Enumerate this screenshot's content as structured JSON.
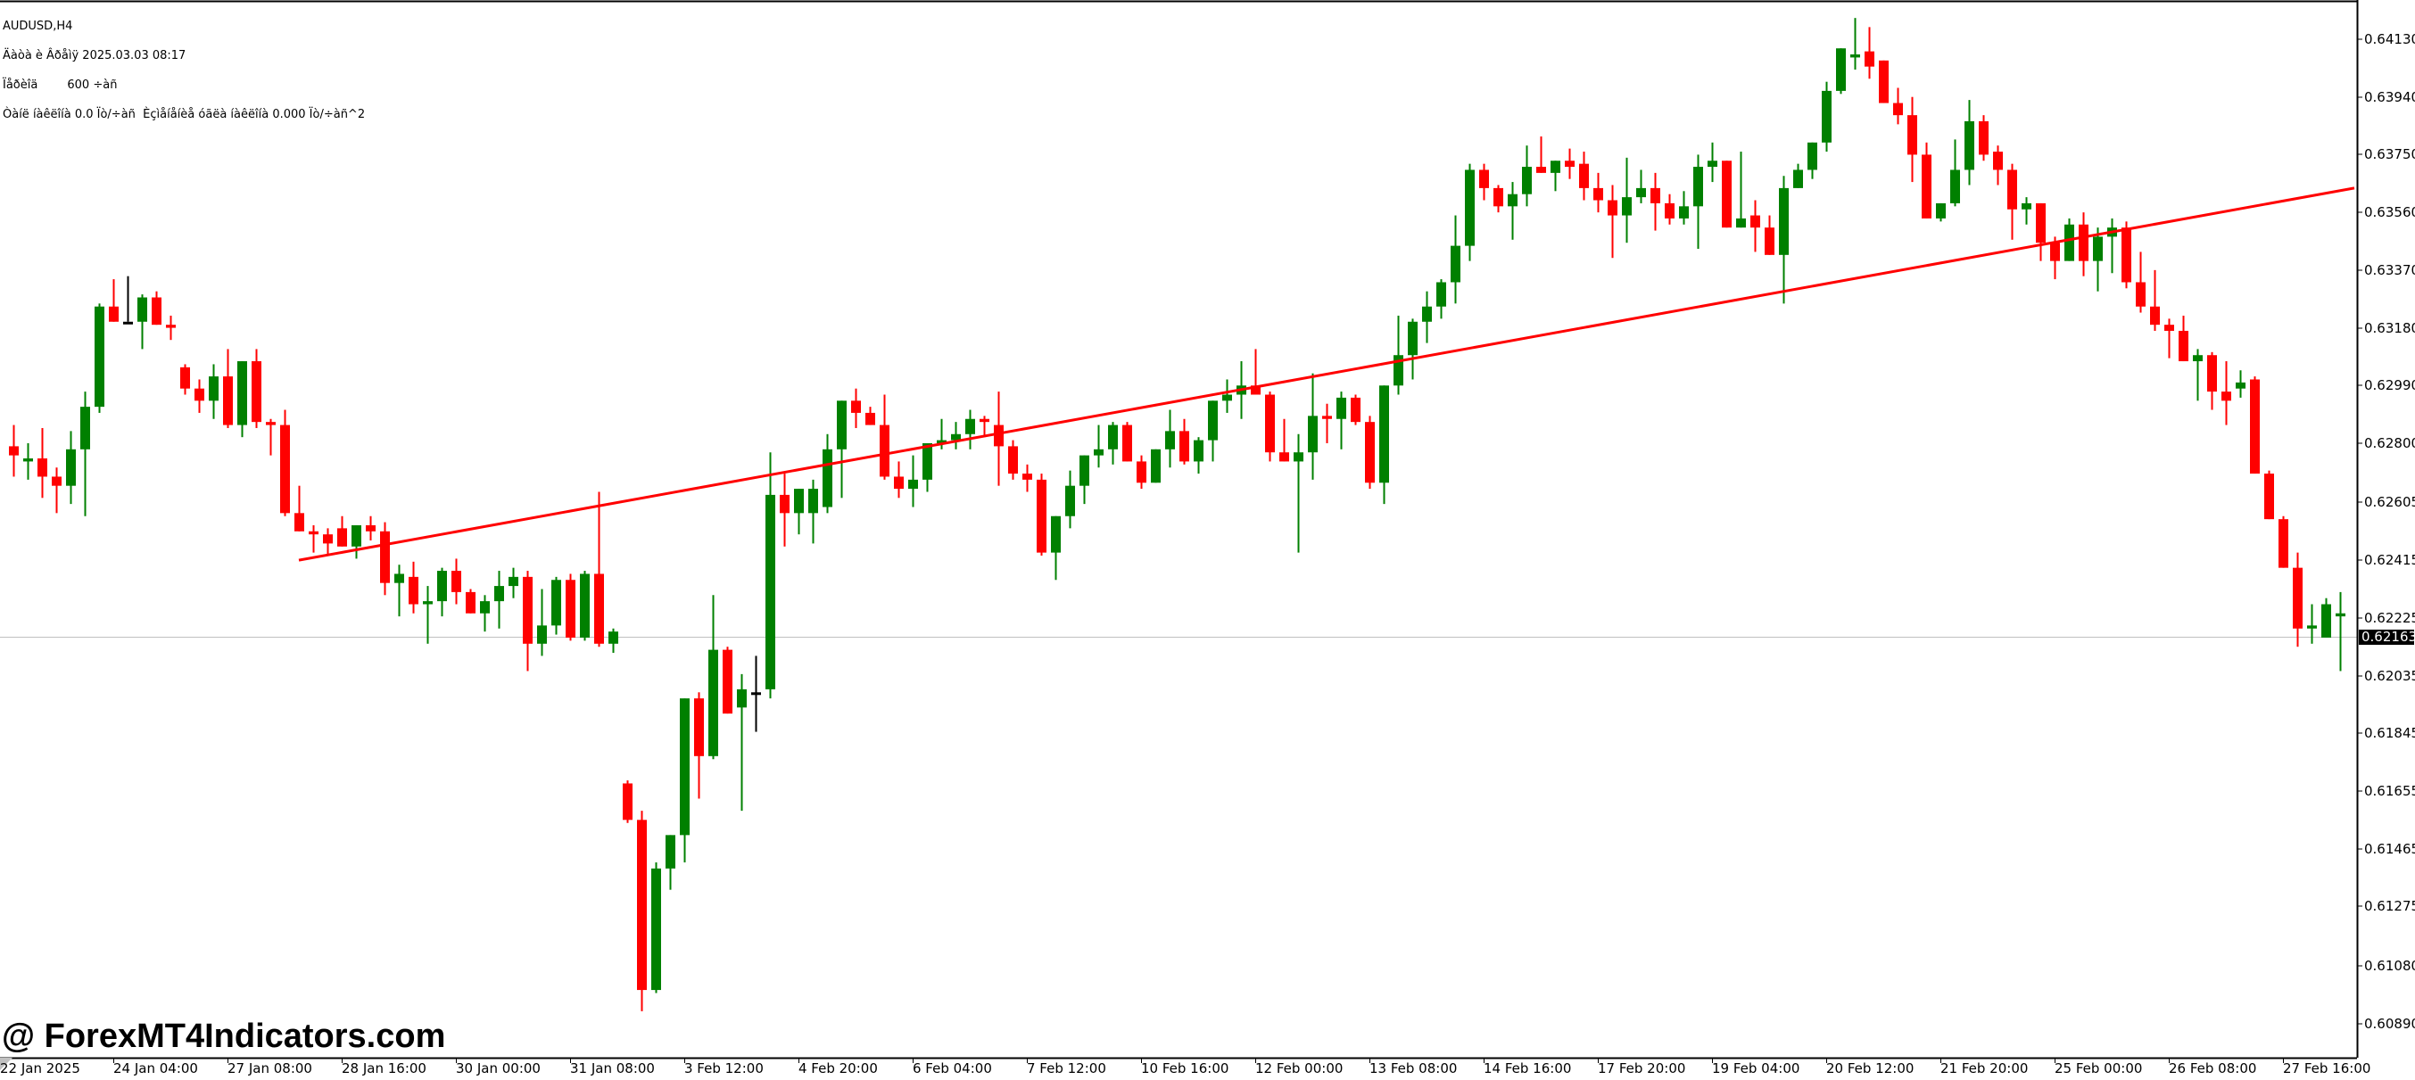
{
  "window": {
    "symbol_timeframe": "AUDUSD,H4",
    "info_lines": [
      "AUDUSD,H4",
      "Äàòà è Âðåìÿ 2025.03.03 08:17",
      "Ïåðèîä        600 ÷àñ",
      "Òàíë íàêëîíà 0.0 Ïò/÷àñ  Èçìåíåíèå óãëà íàêëîíà 0.000 Ïò/÷àñ^2"
    ]
  },
  "watermark": "@ ForexMT4Indicators.com",
  "colors": {
    "background": "#FFFFFF",
    "bull": "#008000",
    "bear": "#FF0000",
    "doji": "#000000",
    "indicator_line": "#FF0000",
    "axis": "#000000",
    "price_line": "#C0C0C0",
    "price_badge_bg": "#000000",
    "price_badge_text": "#FFFFFF"
  },
  "chart_data": {
    "type": "candlestick",
    "title": "AUDUSD,H4",
    "xlabel": "",
    "ylabel": "",
    "ylim": [
      0.6079,
      0.642
    ],
    "grid": false,
    "legend": "none",
    "current_price": 0.62163,
    "y_ticks": [
      0.6413,
      0.6394,
      0.6375,
      0.6356,
      0.6337,
      0.6318,
      0.6299,
      0.628,
      0.62605,
      0.62415,
      0.62225,
      0.62035,
      0.61845,
      0.61655,
      0.61465,
      0.61275,
      0.6108,
      0.6089
    ],
    "x_tick_labels": [
      "22 Jan 2025",
      "24 Jan 04:00",
      "27 Jan 08:00",
      "28 Jan 16:00",
      "30 Jan 00:00",
      "31 Jan 08:00",
      "3 Feb 12:00",
      "4 Feb 20:00",
      "6 Feb 04:00",
      "7 Feb 12:00",
      "10 Feb 16:00",
      "12 Feb 00:00",
      "13 Feb 08:00",
      "14 Feb 16:00",
      "17 Feb 20:00",
      "19 Feb 04:00",
      "20 Feb 12:00",
      "21 Feb 20:00",
      "25 Feb 00:00",
      "26 Feb 08:00",
      "27 Feb 16:00"
    ],
    "candles_per_label": 8,
    "indicator_line": {
      "name": "linear regression",
      "start_index": 20,
      "start_value": 0.62415,
      "end_index": 164,
      "end_value": 0.6364
    },
    "candles": [
      [
        0.6279,
        0.6286,
        0.6269,
        0.6276
      ],
      [
        0.6274,
        0.628,
        0.6268,
        0.6275
      ],
      [
        0.6275,
        0.6285,
        0.6262,
        0.6269
      ],
      [
        0.6269,
        0.6272,
        0.6257,
        0.6266
      ],
      [
        0.6266,
        0.6284,
        0.626,
        0.6278
      ],
      [
        0.6278,
        0.6297,
        0.6256,
        0.6292
      ],
      [
        0.6292,
        0.6326,
        0.629,
        0.6325
      ],
      [
        0.6325,
        0.6334,
        0.632,
        0.632
      ],
      [
        0.632,
        0.6335,
        0.632,
        0.632
      ],
      [
        0.632,
        0.6329,
        0.6311,
        0.6328
      ],
      [
        0.6328,
        0.633,
        0.6319,
        0.6319
      ],
      [
        0.6319,
        0.6322,
        0.6314,
        0.6318
      ],
      [
        0.6305,
        0.6306,
        0.6296,
        0.6298
      ],
      [
        0.6298,
        0.6301,
        0.629,
        0.6294
      ],
      [
        0.6294,
        0.6306,
        0.6288,
        0.6302
      ],
      [
        0.6302,
        0.6311,
        0.6285,
        0.6286
      ],
      [
        0.6286,
        0.6307,
        0.6282,
        0.6307
      ],
      [
        0.6307,
        0.6311,
        0.6285,
        0.6287
      ],
      [
        0.6287,
        0.6288,
        0.6276,
        0.6286
      ],
      [
        0.6286,
        0.6291,
        0.6256,
        0.6257
      ],
      [
        0.6257,
        0.6266,
        0.6251,
        0.6251
      ],
      [
        0.6251,
        0.6253,
        0.6244,
        0.625
      ],
      [
        0.625,
        0.6252,
        0.6243,
        0.6247
      ],
      [
        0.6252,
        0.6256,
        0.6246,
        0.6246
      ],
      [
        0.6246,
        0.6253,
        0.6242,
        0.6253
      ],
      [
        0.6253,
        0.6256,
        0.6248,
        0.6251
      ],
      [
        0.6251,
        0.6254,
        0.623,
        0.6234
      ],
      [
        0.6234,
        0.624,
        0.6223,
        0.6237
      ],
      [
        0.6236,
        0.6241,
        0.6224,
        0.6227
      ],
      [
        0.6227,
        0.6233,
        0.6214,
        0.6228
      ],
      [
        0.6228,
        0.6239,
        0.6223,
        0.6238
      ],
      [
        0.6238,
        0.6242,
        0.6227,
        0.6231
      ],
      [
        0.6231,
        0.6232,
        0.6224,
        0.6224
      ],
      [
        0.6224,
        0.623,
        0.6218,
        0.6228
      ],
      [
        0.6228,
        0.6238,
        0.6219,
        0.6233
      ],
      [
        0.6233,
        0.6239,
        0.6229,
        0.6236
      ],
      [
        0.6236,
        0.6238,
        0.6205,
        0.6214
      ],
      [
        0.6214,
        0.6232,
        0.621,
        0.622
      ],
      [
        0.622,
        0.6236,
        0.6217,
        0.6235
      ],
      [
        0.6235,
        0.6237,
        0.6215,
        0.6216
      ],
      [
        0.6216,
        0.6238,
        0.6215,
        0.6237
      ],
      [
        0.6237,
        0.6264,
        0.6213,
        0.6214
      ],
      [
        0.6214,
        0.6219,
        0.6211,
        0.6218
      ],
      [
        0.6168,
        0.6169,
        0.6155,
        0.6156
      ],
      [
        0.6156,
        0.6159,
        0.6093,
        0.61
      ],
      [
        0.61,
        0.6142,
        0.6099,
        0.614
      ],
      [
        0.614,
        0.6149,
        0.6133,
        0.6151
      ],
      [
        0.6151,
        0.6196,
        0.6142,
        0.6196
      ],
      [
        0.6196,
        0.6198,
        0.6163,
        0.6177
      ],
      [
        0.6177,
        0.623,
        0.6176,
        0.6212
      ],
      [
        0.6212,
        0.6213,
        0.6191,
        0.6191
      ],
      [
        0.6193,
        0.6204,
        0.6159,
        0.6199
      ],
      [
        0.6198,
        0.621,
        0.6185,
        0.6198
      ],
      [
        0.6199,
        0.6277,
        0.6196,
        0.6263
      ],
      [
        0.6263,
        0.627,
        0.6246,
        0.6257
      ],
      [
        0.6257,
        0.6265,
        0.625,
        0.6265
      ],
      [
        0.6257,
        0.6268,
        0.6247,
        0.6265
      ],
      [
        0.6259,
        0.6283,
        0.6257,
        0.6278
      ],
      [
        0.6278,
        0.6291,
        0.6262,
        0.6294
      ],
      [
        0.6294,
        0.6298,
        0.6285,
        0.629
      ],
      [
        0.629,
        0.6292,
        0.6286,
        0.6286
      ],
      [
        0.6286,
        0.6296,
        0.6268,
        0.6269
      ],
      [
        0.6269,
        0.6274,
        0.6262,
        0.6265
      ],
      [
        0.6265,
        0.6276,
        0.6259,
        0.6268
      ],
      [
        0.6268,
        0.628,
        0.6264,
        0.628
      ],
      [
        0.628,
        0.6288,
        0.6278,
        0.6281
      ],
      [
        0.6281,
        0.6287,
        0.6278,
        0.6283
      ],
      [
        0.6283,
        0.6291,
        0.6278,
        0.6288
      ],
      [
        0.6288,
        0.6289,
        0.6282,
        0.6287
      ],
      [
        0.6286,
        0.6297,
        0.6266,
        0.6279
      ],
      [
        0.6279,
        0.6281,
        0.6268,
        0.627
      ],
      [
        0.627,
        0.6273,
        0.6264,
        0.6268
      ],
      [
        0.6268,
        0.627,
        0.6243,
        0.6244
      ],
      [
        0.6244,
        0.6256,
        0.6235,
        0.6256
      ],
      [
        0.6256,
        0.6271,
        0.6252,
        0.6266
      ],
      [
        0.6266,
        0.6276,
        0.626,
        0.6276
      ],
      [
        0.6276,
        0.6286,
        0.6272,
        0.6278
      ],
      [
        0.6278,
        0.6287,
        0.6273,
        0.6286
      ],
      [
        0.6286,
        0.6287,
        0.6274,
        0.6274
      ],
      [
        0.6274,
        0.6276,
        0.6265,
        0.6267
      ],
      [
        0.6267,
        0.6278,
        0.6268,
        0.6278
      ],
      [
        0.6278,
        0.6291,
        0.6272,
        0.6284
      ],
      [
        0.6284,
        0.6288,
        0.6273,
        0.6274
      ],
      [
        0.6274,
        0.6282,
        0.627,
        0.6281
      ],
      [
        0.6281,
        0.6294,
        0.6274,
        0.6294
      ],
      [
        0.6294,
        0.6301,
        0.629,
        0.6296
      ],
      [
        0.6296,
        0.6307,
        0.6288,
        0.6299
      ],
      [
        0.6299,
        0.6311,
        0.6298,
        0.6296
      ],
      [
        0.6296,
        0.6297,
        0.6274,
        0.6277
      ],
      [
        0.6277,
        0.6288,
        0.6274,
        0.6274
      ],
      [
        0.6274,
        0.6283,
        0.6244,
        0.6277
      ],
      [
        0.6277,
        0.6303,
        0.6268,
        0.6289
      ],
      [
        0.6289,
        0.6293,
        0.628,
        0.6288
      ],
      [
        0.6288,
        0.6297,
        0.6278,
        0.6295
      ],
      [
        0.6295,
        0.6296,
        0.6286,
        0.6287
      ],
      [
        0.6287,
        0.6289,
        0.6265,
        0.6267
      ],
      [
        0.6267,
        0.6299,
        0.626,
        0.6299
      ],
      [
        0.6299,
        0.6322,
        0.6296,
        0.6309
      ],
      [
        0.6309,
        0.6321,
        0.6301,
        0.632
      ],
      [
        0.632,
        0.633,
        0.6313,
        0.6325
      ],
      [
        0.6325,
        0.6334,
        0.6321,
        0.6333
      ],
      [
        0.6333,
        0.6355,
        0.6326,
        0.6345
      ],
      [
        0.6345,
        0.6372,
        0.634,
        0.637
      ],
      [
        0.637,
        0.6372,
        0.636,
        0.6364
      ],
      [
        0.6364,
        0.6365,
        0.6356,
        0.6358
      ],
      [
        0.6358,
        0.6366,
        0.6347,
        0.6362
      ],
      [
        0.6362,
        0.6378,
        0.6358,
        0.6371
      ],
      [
        0.6371,
        0.6381,
        0.6369,
        0.6369
      ],
      [
        0.6369,
        0.6373,
        0.6363,
        0.6373
      ],
      [
        0.6373,
        0.6377,
        0.6367,
        0.6371
      ],
      [
        0.6372,
        0.6376,
        0.636,
        0.6364
      ],
      [
        0.6364,
        0.6369,
        0.6356,
        0.636
      ],
      [
        0.636,
        0.6365,
        0.6341,
        0.6355
      ],
      [
        0.6355,
        0.6374,
        0.6346,
        0.6361
      ],
      [
        0.6361,
        0.637,
        0.6359,
        0.6364
      ],
      [
        0.6364,
        0.6369,
        0.635,
        0.6359
      ],
      [
        0.6359,
        0.6362,
        0.6352,
        0.6354
      ],
      [
        0.6354,
        0.6363,
        0.6352,
        0.6358
      ],
      [
        0.6358,
        0.6375,
        0.6344,
        0.6371
      ],
      [
        0.6371,
        0.6379,
        0.6366,
        0.6373
      ],
      [
        0.6373,
        0.6371,
        0.6351,
        0.6351
      ],
      [
        0.6351,
        0.6376,
        0.6353,
        0.6354
      ],
      [
        0.6355,
        0.636,
        0.6343,
        0.6351
      ],
      [
        0.6351,
        0.6355,
        0.6345,
        0.6342
      ],
      [
        0.6342,
        0.6368,
        0.6326,
        0.6364
      ],
      [
        0.6364,
        0.6372,
        0.6365,
        0.637
      ],
      [
        0.637,
        0.6379,
        0.6367,
        0.6379
      ],
      [
        0.6379,
        0.6399,
        0.6376,
        0.6396
      ],
      [
        0.6396,
        0.641,
        0.6395,
        0.641
      ],
      [
        0.6407,
        0.642,
        0.6403,
        0.6408
      ],
      [
        0.6409,
        0.6417,
        0.64,
        0.6404
      ],
      [
        0.6406,
        0.6406,
        0.6392,
        0.6392
      ],
      [
        0.6392,
        0.6397,
        0.6385,
        0.6388
      ],
      [
        0.6388,
        0.6394,
        0.6366,
        0.6375
      ],
      [
        0.6375,
        0.6379,
        0.6354,
        0.6354
      ],
      [
        0.6354,
        0.6359,
        0.6353,
        0.6359
      ],
      [
        0.6359,
        0.638,
        0.6358,
        0.637
      ],
      [
        0.637,
        0.6393,
        0.6365,
        0.6386
      ],
      [
        0.6386,
        0.6388,
        0.6373,
        0.6375
      ],
      [
        0.6376,
        0.6378,
        0.6365,
        0.637
      ],
      [
        0.637,
        0.6372,
        0.6347,
        0.6357
      ],
      [
        0.6357,
        0.6361,
        0.6352,
        0.6359
      ],
      [
        0.6359,
        0.6359,
        0.634,
        0.6346
      ],
      [
        0.6346,
        0.6348,
        0.6334,
        0.634
      ],
      [
        0.634,
        0.6354,
        0.634,
        0.6352
      ],
      [
        0.6352,
        0.6356,
        0.6335,
        0.634
      ],
      [
        0.634,
        0.6351,
        0.633,
        0.6348
      ],
      [
        0.6348,
        0.6354,
        0.6336,
        0.6351
      ],
      [
        0.6351,
        0.6353,
        0.6331,
        0.6333
      ],
      [
        0.6333,
        0.6343,
        0.6323,
        0.6325
      ],
      [
        0.6325,
        0.6337,
        0.6317,
        0.6319
      ],
      [
        0.6319,
        0.6321,
        0.6308,
        0.6317
      ],
      [
        0.6317,
        0.6322,
        0.6311,
        0.6307
      ],
      [
        0.6307,
        0.6311,
        0.6294,
        0.6309
      ],
      [
        0.6309,
        0.631,
        0.6291,
        0.6297
      ],
      [
        0.6297,
        0.6307,
        0.6286,
        0.6294
      ],
      [
        0.6298,
        0.6304,
        0.6295,
        0.63
      ],
      [
        0.6301,
        0.6302,
        0.627,
        0.627
      ],
      [
        0.627,
        0.6271,
        0.6258,
        0.6255
      ],
      [
        0.6255,
        0.6256,
        0.624,
        0.6239
      ],
      [
        0.6239,
        0.6244,
        0.6213,
        0.6219
      ],
      [
        0.6219,
        0.6227,
        0.6214,
        0.622
      ],
      [
        0.6216,
        0.6229,
        0.6217,
        0.6227
      ],
      [
        0.6223,
        0.6231,
        0.6205,
        0.6224
      ]
    ]
  }
}
